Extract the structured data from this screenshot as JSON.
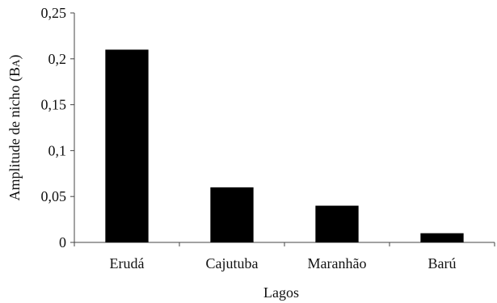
{
  "chart_data": {
    "type": "bar",
    "categories": [
      "Erudá",
      "Cajutuba",
      "Maranhão",
      "Barú"
    ],
    "values": [
      0.21,
      0.06,
      0.04,
      0.01
    ],
    "title": "",
    "xlabel": "Lagos",
    "ylabel_main": "Amplitude de nicho (B",
    "ylabel_sub": "A",
    "ylabel_close": ")",
    "ylim": [
      0,
      0.25
    ],
    "yticks": [
      0,
      0.05,
      0.1,
      0.15,
      0.2,
      0.25
    ],
    "ytick_labels": [
      "0",
      "0,05",
      "0,1",
      "0,15",
      "0,2",
      "0,25"
    ],
    "grid": false,
    "bar_color": "#000000",
    "axis_color": "#444444"
  }
}
